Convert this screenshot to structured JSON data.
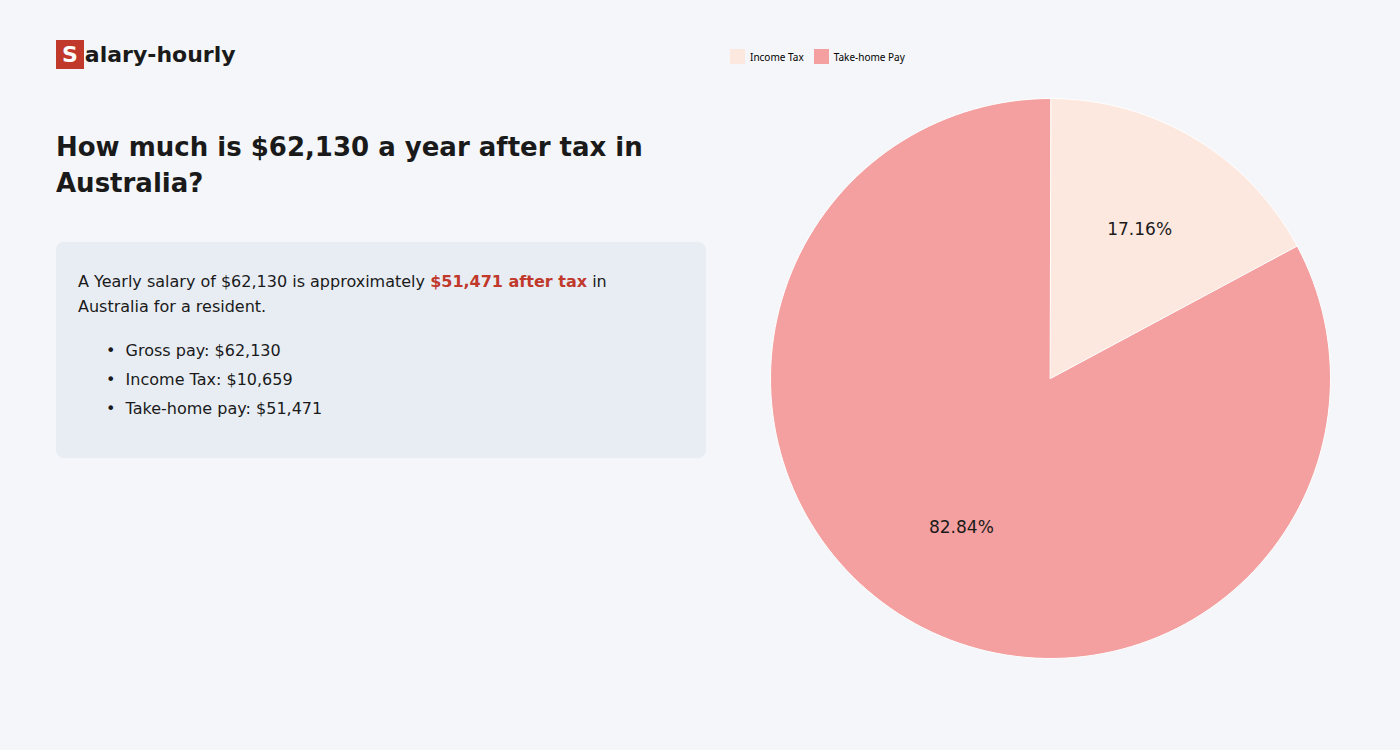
{
  "chart_data": {
    "type": "pie",
    "title": "How much is $62,130 a year after tax in\nAustralia?",
    "annotations": [
      [
        {
          "text": "S",
          "color": "#c0392b"
        },
        {
          "text": "alary-hourly",
          "color": "#1a1a1a"
        }
      ],
      [
        {
          "text": "A Yearly salary of $62,130 is approximately ",
          "color": "#1a1a1a"
        },
        {
          "text": "$51,471 after tax",
          "color": "#c0392b"
        },
        {
          "text": " in",
          "color": "#1a1a1a"
        }
      ],
      [
        {
          "text": "Australia for a resident.",
          "color": "#1a1a1a"
        }
      ],
      [
        {
          "text": "•  Gross pay: $62,130",
          "color": "#1a1a1a"
        }
      ],
      [
        {
          "text": "•  Income Tax: $10,659",
          "color": "#1a1a1a"
        }
      ],
      [
        {
          "text": "•  Take-home pay: $51,471",
          "color": "#1a1a1a"
        }
      ]
    ],
    "categories": [
      "Income Tax",
      "Take-home Pay"
    ],
    "values": [
      17.16,
      82.84
    ],
    "value_labels": [
      "17.16%",
      "82.84%"
    ],
    "data_labels": true,
    "colors": [
      "#fce8df",
      "#f4a0a0"
    ],
    "legend": "top"
  }
}
